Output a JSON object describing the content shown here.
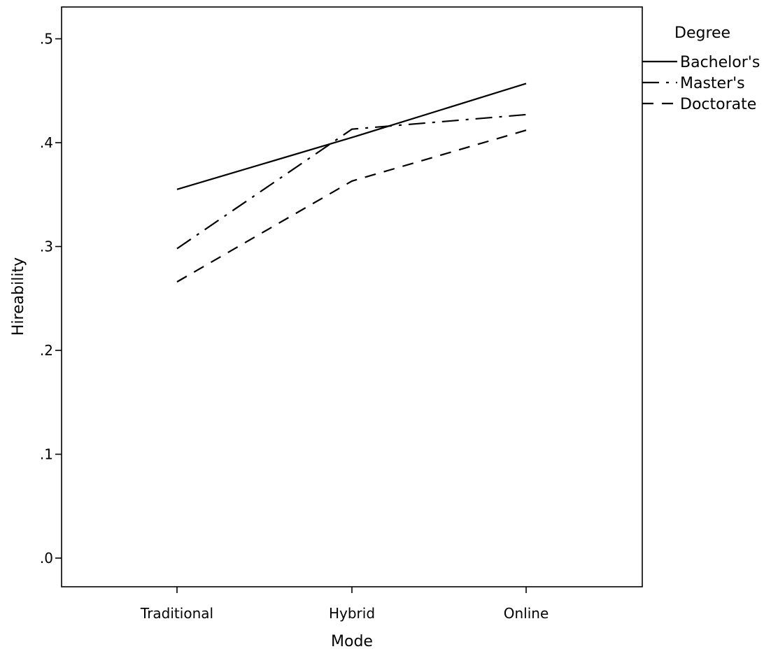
{
  "chart_data": {
    "type": "line",
    "title": "",
    "xlabel": "Mode",
    "ylabel": "Hireability",
    "categories": [
      "Traditional",
      "Hybrid",
      "Online"
    ],
    "ylim": [
      -0.027,
      0.532
    ],
    "yticks": [
      0.0,
      0.1,
      0.2,
      0.3,
      0.4,
      0.5
    ],
    "ytick_labels": [
      ".0",
      ".1",
      ".2",
      ".3",
      ".4",
      ".5"
    ],
    "grid": false,
    "legend": {
      "title": "Degree",
      "placement": "right-top",
      "entries": [
        "Bachelor's",
        "Master's",
        "Doctorate"
      ]
    },
    "series": [
      {
        "name": "Bachelor's",
        "style": "solid",
        "values": [
          0.355,
          0.405,
          0.457
        ]
      },
      {
        "name": "Master's",
        "style": "dashdot",
        "values": [
          0.298,
          0.413,
          0.427
        ]
      },
      {
        "name": "Doctorate",
        "style": "dashed",
        "values": [
          0.266,
          0.363,
          0.412
        ]
      }
    ],
    "colors": {
      "line": "#000000",
      "axis": "#000000",
      "background": "#ffffff"
    }
  }
}
